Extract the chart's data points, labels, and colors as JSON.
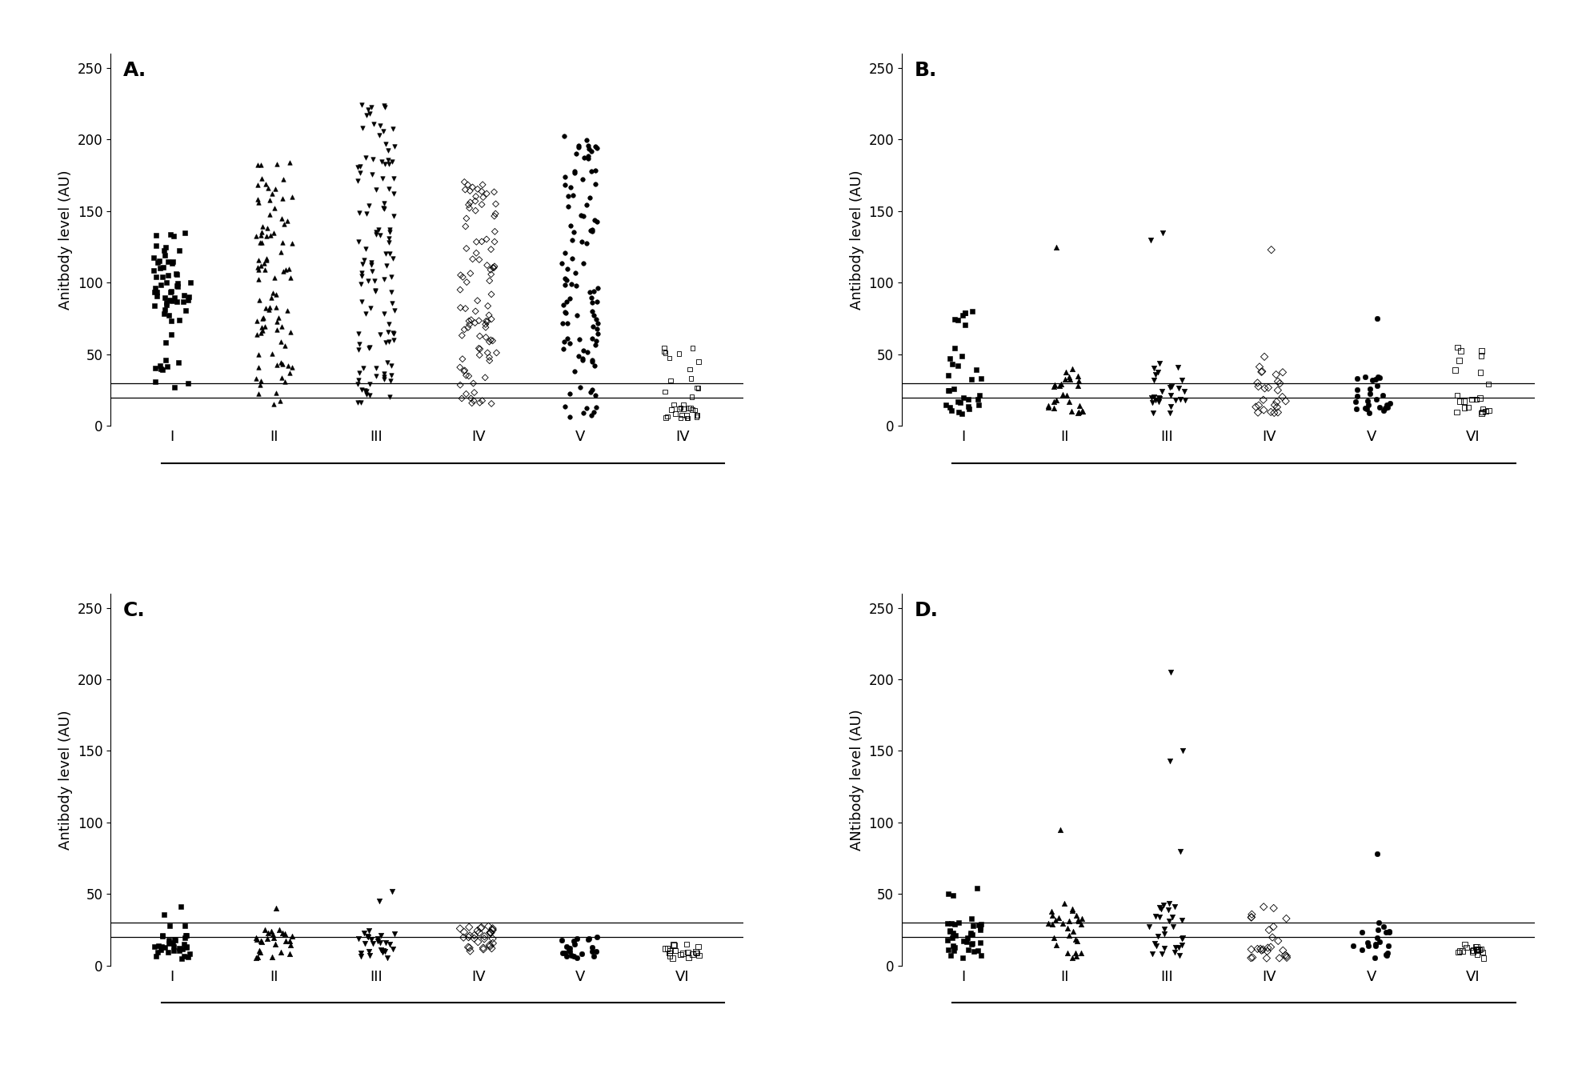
{
  "panel_labels": [
    "A",
    "B",
    "C",
    "D"
  ],
  "cat_labels_A": [
    "I",
    "II",
    "III",
    "IV",
    "V",
    "IV"
  ],
  "cat_labels": [
    "I",
    "II",
    "III",
    "IV",
    "V",
    "VI"
  ],
  "ylabel_A": "Anitbody level (AU)",
  "ylabel_B": "Antibody level (AU)",
  "ylabel_C": "Antibody level (AU)",
  "ylabel_D": "ANtibody level (AU)",
  "ylim": [
    0,
    260
  ],
  "yticks": [
    0,
    50,
    100,
    150,
    200,
    250
  ],
  "line1": 20,
  "line2": 30,
  "markers": [
    "s",
    "^",
    "v",
    "D",
    "o",
    "s"
  ],
  "filled": [
    true,
    true,
    true,
    false,
    true,
    false
  ]
}
